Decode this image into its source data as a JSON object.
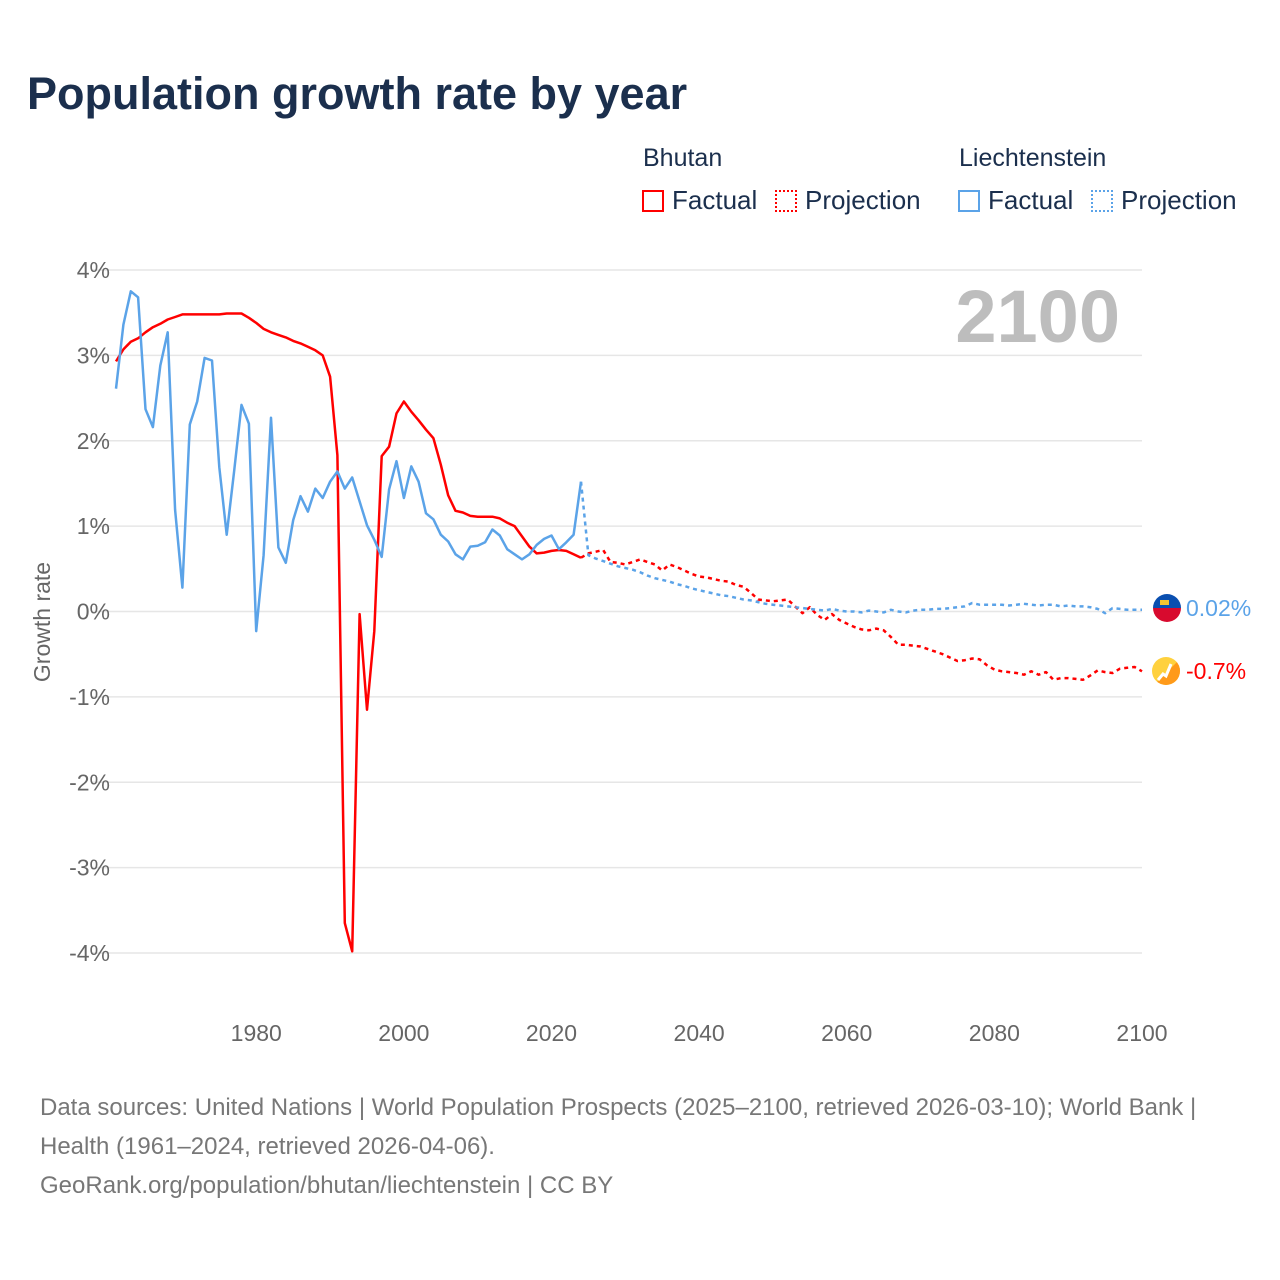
{
  "title": "Population growth rate by year",
  "legend": {
    "groups": [
      {
        "name": "Bhutan",
        "factual": "Factual",
        "projection": "Projection",
        "color": "#ff0000"
      },
      {
        "name": "Liechtenstein",
        "factual": "Factual",
        "projection": "Projection",
        "color": "#5ba3e8"
      }
    ]
  },
  "year_watermark": "2100",
  "end_labels": {
    "liechtenstein": "0.02%",
    "bhutan": "-0.7%"
  },
  "footer": {
    "sources": "Data sources: United Nations | World Population Prospects (2025–2100, retrieved 2026-03-10); World Bank | Health (1961–2024, retrieved 2026-04-06).",
    "credit": "GeoRank.org/population/bhutan/liechtenstein | CC BY"
  },
  "chart_data": {
    "type": "line",
    "title": "Population growth rate by year",
    "xlabel": "",
    "ylabel": "Growth rate",
    "xlim": [
      1961,
      2100
    ],
    "ylim": [
      -4,
      4
    ],
    "xticks": [
      "1980",
      "2000",
      "2020",
      "2040",
      "2060",
      "2080",
      "2100"
    ],
    "yticks": [
      "4%",
      "3%",
      "2%",
      "1%",
      "0%",
      "-1%",
      "-2%",
      "-3%",
      "-4%"
    ],
    "grid": true,
    "legend_position": "top-right",
    "series": [
      {
        "name": "Bhutan Factual",
        "style": "solid",
        "color": "#ff0000",
        "start_year": 1961,
        "values": [
          2.93,
          3.07,
          3.16,
          3.2,
          3.27,
          3.33,
          3.37,
          3.42,
          3.45,
          3.48,
          3.48,
          3.48,
          3.48,
          3.48,
          3.48,
          3.49,
          3.49,
          3.49,
          3.44,
          3.38,
          3.31,
          3.27,
          3.24,
          3.21,
          3.17,
          3.14,
          3.1,
          3.06,
          3.0,
          2.75,
          1.83,
          -3.65,
          -3.98,
          -0.03,
          -1.15,
          -0.23,
          1.82,
          1.93,
          2.32,
          2.46,
          2.34,
          2.24,
          2.13,
          2.03,
          1.72,
          1.36,
          1.18,
          1.16,
          1.12,
          1.11,
          1.11,
          1.11,
          1.09,
          1.04,
          1.0,
          0.88,
          0.76,
          0.68,
          0.69,
          0.71,
          0.72,
          0.71,
          0.67,
          0.63
        ]
      },
      {
        "name": "Bhutan Projection",
        "style": "dotted",
        "color": "#ff0000",
        "start_year": 2025,
        "values": [
          0.68,
          0.7,
          0.72,
          0.58,
          0.57,
          0.55,
          0.58,
          0.61,
          0.58,
          0.55,
          0.48,
          0.55,
          0.52,
          0.48,
          0.44,
          0.41,
          0.4,
          0.38,
          0.36,
          0.35,
          0.31,
          0.29,
          0.22,
          0.14,
          0.13,
          0.12,
          0.13,
          0.14,
          0.06,
          -0.02,
          0.05,
          -0.04,
          -0.1,
          -0.03,
          -0.1,
          -0.14,
          -0.18,
          -0.21,
          -0.22,
          -0.2,
          -0.22,
          -0.3,
          -0.39,
          -0.39,
          -0.4,
          -0.41,
          -0.44,
          -0.47,
          -0.5,
          -0.54,
          -0.58,
          -0.57,
          -0.55,
          -0.56,
          -0.63,
          -0.68,
          -0.7,
          -0.71,
          -0.72,
          -0.74,
          -0.7,
          -0.74,
          -0.71,
          -0.8,
          -0.78,
          -0.78,
          -0.79,
          -0.8,
          -0.75,
          -0.69,
          -0.71,
          -0.72,
          -0.67,
          -0.66,
          -0.65,
          -0.7
        ]
      },
      {
        "name": "Liechtenstein Factual",
        "style": "solid",
        "color": "#5ba3e8",
        "start_year": 1961,
        "values": [
          2.61,
          3.36,
          3.75,
          3.68,
          2.37,
          2.16,
          2.88,
          3.27,
          1.19,
          0.28,
          2.19,
          2.46,
          2.97,
          2.94,
          1.69,
          0.9,
          1.64,
          2.42,
          2.2,
          -0.23,
          0.66,
          2.27,
          0.75,
          0.57,
          1.07,
          1.35,
          1.17,
          1.44,
          1.33,
          1.52,
          1.64,
          1.44,
          1.57,
          1.29,
          1.01,
          0.84,
          0.64,
          1.43,
          1.76,
          1.33,
          1.7,
          1.52,
          1.15,
          1.08,
          0.9,
          0.82,
          0.67,
          0.61,
          0.76,
          0.77,
          0.81,
          0.96,
          0.89,
          0.73,
          0.67,
          0.61,
          0.67,
          0.78,
          0.85,
          0.89,
          0.73,
          0.81,
          0.9,
          1.52
        ]
      },
      {
        "name": "Liechtenstein Projection",
        "style": "dotted",
        "color": "#5ba3e8",
        "start_year": 2025,
        "values": [
          0.66,
          0.62,
          0.59,
          0.56,
          0.53,
          0.51,
          0.49,
          0.46,
          0.42,
          0.39,
          0.37,
          0.35,
          0.32,
          0.3,
          0.27,
          0.25,
          0.23,
          0.21,
          0.19,
          0.18,
          0.16,
          0.14,
          0.13,
          0.11,
          0.09,
          0.08,
          0.07,
          0.06,
          0.05,
          0.04,
          0.03,
          0.02,
          0.01,
          0.03,
          0.01,
          0.0,
          0.0,
          -0.01,
          0.01,
          0.0,
          -0.01,
          0.02,
          0.0,
          -0.01,
          0.01,
          0.02,
          0.02,
          0.03,
          0.03,
          0.04,
          0.05,
          0.06,
          0.1,
          0.08,
          0.08,
          0.08,
          0.08,
          0.07,
          0.08,
          0.09,
          0.08,
          0.07,
          0.08,
          0.08,
          0.06,
          0.07,
          0.06,
          0.06,
          0.05,
          0.03,
          -0.02,
          0.04,
          0.03,
          0.02,
          0.02,
          0.02
        ]
      }
    ]
  }
}
